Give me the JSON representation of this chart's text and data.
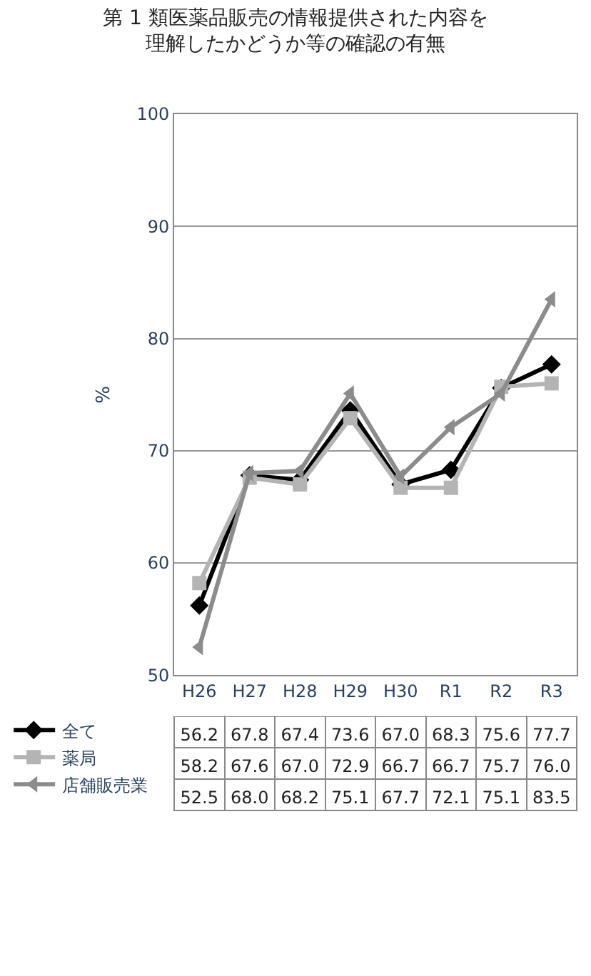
{
  "chart_data": {
    "type": "line",
    "title": "第 1 類医薬品販売の情報提供された内容を理解したかどうか等の確認の有無",
    "ylabel": "%",
    "categories": [
      "H26",
      "H27",
      "H28",
      "H29",
      "H30",
      "R1",
      "R2",
      "R3"
    ],
    "series": [
      {
        "name": "全て",
        "color": "#000000",
        "marker": "diamond",
        "values": [
          56.2,
          67.8,
          67.4,
          73.6,
          67.0,
          68.3,
          75.6,
          77.7
        ],
        "value_labels": [
          "56.2",
          "67.8",
          "67.4",
          "73.6",
          "67.0",
          "68.3",
          "75.6",
          "77.7"
        ]
      },
      {
        "name": "薬局",
        "color": "#b4b4b4",
        "marker": "square",
        "values": [
          58.2,
          67.6,
          67.0,
          72.9,
          66.7,
          66.7,
          75.7,
          76.0
        ],
        "value_labels": [
          "58.2",
          "67.6",
          "67.0",
          "72.9",
          "66.7",
          "66.7",
          "75.7",
          "76.0"
        ]
      },
      {
        "name": "店舗販売業",
        "color": "#8c8c8c",
        "marker": "triangle",
        "values": [
          52.5,
          68.0,
          68.2,
          75.1,
          67.7,
          72.1,
          75.1,
          83.5
        ],
        "value_labels": [
          "52.5",
          "68.0",
          "68.2",
          "75.1",
          "67.7",
          "72.1",
          "75.1",
          "83.5"
        ]
      }
    ],
    "ylim": [
      50,
      100
    ],
    "yticks": [
      50,
      60,
      70,
      80,
      90,
      100
    ],
    "grid": "y",
    "legend": "bottom left",
    "line_style": "solid"
  }
}
